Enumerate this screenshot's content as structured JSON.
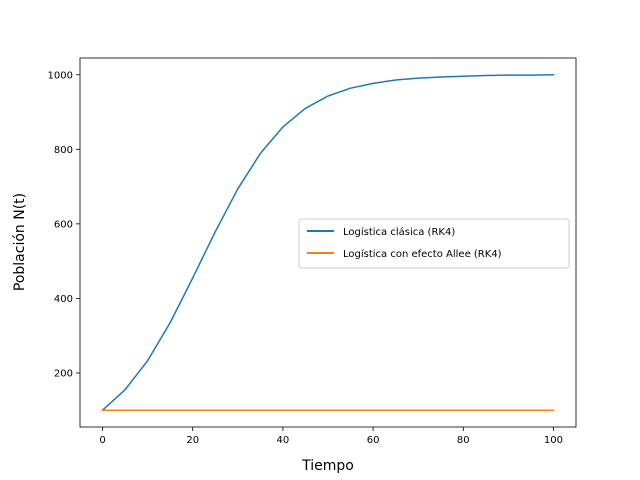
{
  "chart_data": {
    "type": "line",
    "title": "",
    "xlabel": "Tiempo",
    "ylabel": "Población N(t)",
    "xlim": [
      -5,
      105
    ],
    "ylim": [
      55,
      1045
    ],
    "xticks": [
      0,
      20,
      40,
      60,
      80,
      100
    ],
    "yticks": [
      200,
      400,
      600,
      800,
      1000
    ],
    "grid": false,
    "legend": {
      "placement": "center-right"
    },
    "x": [
      0,
      5,
      10,
      15,
      20,
      25,
      30,
      35,
      40,
      45,
      50,
      55,
      60,
      65,
      70,
      75,
      80,
      85,
      90,
      95,
      100
    ],
    "series": [
      {
        "name": "Logística clásica (RK4)",
        "color": "#1f77b4",
        "values": [
          100,
          155,
          233,
          335,
          455,
          579,
          694,
          789,
          860,
          910,
          943,
          964,
          977,
          986,
          991,
          994,
          996,
          998,
          999,
          999,
          1000
        ]
      },
      {
        "name": "Logística con efecto Allee (RK4)",
        "color": "#ff7f0e",
        "values": [
          100,
          100,
          100,
          100,
          100,
          100,
          100,
          100,
          100,
          100,
          100,
          100,
          100,
          100,
          100,
          100,
          100,
          100,
          100,
          100,
          100
        ]
      }
    ]
  }
}
